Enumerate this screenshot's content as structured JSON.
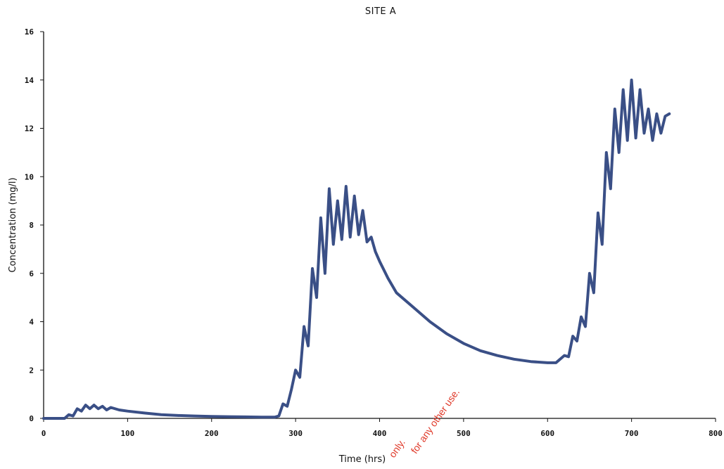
{
  "chart_data": {
    "type": "line",
    "title": "SITE A",
    "xlabel": "Time (hrs)",
    "ylabel": "Concentration (mg/l)",
    "xlim": [
      0,
      800
    ],
    "ylim": [
      0,
      16
    ],
    "xticks": [
      0,
      100,
      200,
      300,
      400,
      500,
      600,
      700,
      800
    ],
    "yticks": [
      0,
      2,
      4,
      6,
      8,
      10,
      12,
      14,
      16
    ],
    "grid": false,
    "legend": "none",
    "line_color": "#3a4f86",
    "series": [
      {
        "x": [
          0,
          25,
          30,
          35,
          40,
          45,
          50,
          55,
          60,
          65,
          70,
          75,
          80,
          90,
          100,
          120,
          140,
          160,
          180,
          200,
          220,
          240,
          260,
          270,
          275,
          280,
          285,
          290,
          295,
          300,
          305,
          310,
          315,
          320,
          325,
          330,
          335,
          340,
          345,
          350,
          355,
          360,
          365,
          370,
          375,
          380,
          385,
          390,
          395,
          400,
          410,
          420,
          440,
          460,
          480,
          500,
          520,
          540,
          560,
          580,
          600,
          610,
          620,
          625,
          630,
          635,
          640,
          645,
          650,
          655,
          660,
          665,
          670,
          675,
          680,
          685,
          690,
          695,
          700,
          705,
          710,
          715,
          720,
          725,
          730,
          735,
          740,
          745
        ],
        "y": [
          0,
          0,
          0.15,
          0.1,
          0.4,
          0.3,
          0.55,
          0.4,
          0.55,
          0.4,
          0.5,
          0.35,
          0.45,
          0.35,
          0.3,
          0.22,
          0.15,
          0.12,
          0.1,
          0.08,
          0.07,
          0.06,
          0.05,
          0.05,
          0.05,
          0.1,
          0.6,
          0.5,
          1.2,
          2.0,
          1.7,
          3.8,
          3.0,
          6.2,
          5.0,
          8.3,
          6.0,
          9.5,
          7.2,
          9.0,
          7.4,
          9.6,
          7.5,
          9.2,
          7.6,
          8.6,
          7.3,
          7.5,
          6.9,
          6.5,
          5.8,
          5.2,
          4.6,
          4.0,
          3.5,
          3.1,
          2.8,
          2.6,
          2.45,
          2.35,
          2.3,
          2.3,
          2.6,
          2.55,
          3.4,
          3.2,
          4.2,
          3.8,
          6.0,
          5.2,
          8.5,
          7.2,
          11.0,
          9.5,
          12.8,
          11.0,
          13.6,
          11.5,
          14.0,
          11.6,
          13.6,
          11.8,
          12.8,
          11.5,
          12.6,
          11.8,
          12.5,
          12.6
        ]
      }
    ]
  },
  "watermark": {
    "line1": "only.",
    "line2": "for any other use."
  }
}
